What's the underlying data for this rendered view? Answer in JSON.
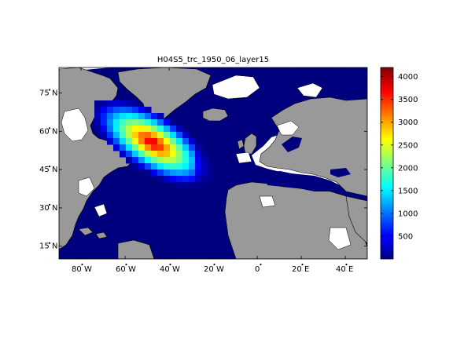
{
  "figure": {
    "title": "H04S5_trc_1950_06_layer15"
  },
  "map": {
    "lat_labels": [
      {
        "deg": "75",
        "hemi": "N",
        "lat": 75
      },
      {
        "deg": "60",
        "hemi": "N",
        "lat": 60
      },
      {
        "deg": "45",
        "hemi": "N",
        "lat": 45
      },
      {
        "deg": "30",
        "hemi": "N",
        "lat": 30
      },
      {
        "deg": "15",
        "hemi": "N",
        "lat": 15
      }
    ],
    "lon_labels": [
      {
        "deg": "80",
        "hemi": "W",
        "lon": -80
      },
      {
        "deg": "60",
        "hemi": "W",
        "lon": -60
      },
      {
        "deg": "40",
        "hemi": "W",
        "lon": -40
      },
      {
        "deg": "20",
        "hemi": "W",
        "lon": -20
      },
      {
        "deg": "0",
        "hemi": "",
        "lon": 0
      },
      {
        "deg": "20",
        "hemi": "E",
        "lon": 20
      },
      {
        "deg": "40",
        "hemi": "E",
        "lon": 40
      }
    ],
    "extent": {
      "lon_min": -90,
      "lon_max": 50,
      "lat_min": 10,
      "lat_max": 85
    },
    "colors": {
      "land": "#999999",
      "ocean_low": "#00007f",
      "nodata": "#ffffff"
    }
  },
  "colorbar": {
    "ticks": [
      "500",
      "1000",
      "1500",
      "2000",
      "2500",
      "3000",
      "3500",
      "4000"
    ],
    "tick_values": [
      500,
      1000,
      1500,
      2000,
      2500,
      3000,
      3500,
      4000
    ],
    "range": [
      0,
      4200
    ],
    "colormap": "jet"
  }
}
